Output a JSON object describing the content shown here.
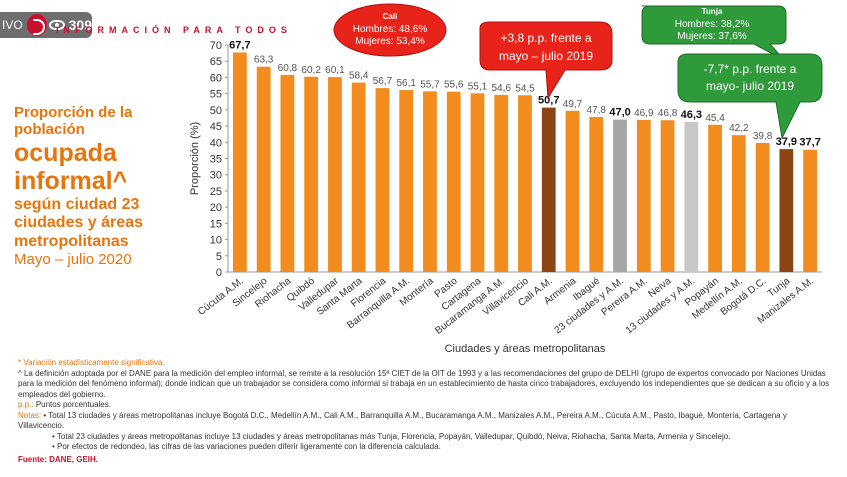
{
  "overlay": {
    "live_label": "IVO",
    "views": "309"
  },
  "header": {
    "tagline": "INFORMACIÓN PARA TODOS"
  },
  "left_title": {
    "line1": "Proporción de la población",
    "line2": "ocupada informal^",
    "line3": "según ciudad 23 ciudades y áreas metropolitanas",
    "line4": "Mayo – julio 2020"
  },
  "callouts": {
    "cali_box": {
      "title": "Cali",
      "line1": "Hombres: 48,6%",
      "line2": "Mujeres: 53,4%"
    },
    "cali_change": {
      "line1": "+3,8 p.p. frente a",
      "line2": "mayo – julio 2019"
    },
    "tunja_box": {
      "title": "Tunja",
      "line1": "Hombres: 38,2%",
      "line2": "Mujeres: 37,6%"
    },
    "tunja_change": {
      "line1": "-7,7* p.p. frente a",
      "line2": "mayo- julio 2019"
    }
  },
  "chart_data": {
    "type": "bar",
    "xlabel": "Ciudades y áreas metropolitanas",
    "ylabel": "Proporción (%)",
    "ylim": [
      0,
      70
    ],
    "yticks": [
      0,
      5,
      10,
      15,
      20,
      25,
      30,
      35,
      40,
      45,
      50,
      55,
      60,
      65,
      70
    ],
    "categories": [
      "Cúcuta A.M.",
      "Sincelejo",
      "Riohacha",
      "Quibdó",
      "Valledupar",
      "Santa Marta",
      "Florencia",
      "Barranquilla A.M.",
      "Montería",
      "Pasto",
      "Cartagena",
      "Bucaramanga A.M.",
      "Villavicencio",
      "Cali A.M.",
      "Armenia",
      "Ibagué",
      "23 ciudades y A.M.",
      "Pereira A.M.",
      "Neiva",
      "13 ciudades y A.M.",
      "Popayán",
      "Medellín A.M.",
      "Bogotá D.C.",
      "Tunja",
      "Manizales A.M."
    ],
    "values": [
      67.7,
      63.3,
      60.8,
      60.2,
      60.1,
      58.4,
      56.7,
      56.1,
      55.7,
      55.6,
      55.1,
      54.6,
      54.5,
      50.7,
      49.7,
      47.8,
      47.0,
      46.9,
      46.8,
      46.3,
      45.4,
      42.2,
      39.8,
      37.9,
      37.7
    ],
    "labels": [
      "67,7",
      "63,3",
      "60,8",
      "60,2",
      "60,1",
      "58,4",
      "56,7",
      "56,1",
      "55,7",
      "55,6",
      "55,1",
      "54,6",
      "54,5",
      "50,7",
      "49,7",
      "47,8",
      "47,0",
      "46,9",
      "46,8",
      "46,3",
      "45,4",
      "42,2",
      "39,8",
      "37,9",
      "37,7"
    ],
    "bold_labels": [
      0,
      13,
      16,
      19,
      23,
      24
    ],
    "bar_colors": [
      "#f28c1e",
      "#f28c1e",
      "#f28c1e",
      "#f28c1e",
      "#f28c1e",
      "#f28c1e",
      "#f28c1e",
      "#f28c1e",
      "#f28c1e",
      "#f28c1e",
      "#f28c1e",
      "#f28c1e",
      "#f28c1e",
      "#8b4513",
      "#f28c1e",
      "#f28c1e",
      "#a6a6a6",
      "#f28c1e",
      "#f28c1e",
      "#c8c8c8",
      "#f28c1e",
      "#f28c1e",
      "#f28c1e",
      "#8b4513",
      "#f28c1e"
    ]
  },
  "notes": {
    "n1": "* Variación estadísticamente significativa.",
    "n2": "^ La definición adoptada por el DANE para la medición del empleo informal, se remite a la resolución 15ª CIET de la OIT de 1993 y a las recomendaciones del grupo de DELHI (grupo de expertos convocado por Naciones Unidas para la medición del fenómeno informal); donde indican que un trabajador se considera como informal si trabaja en un establecimiento de hasta cinco trabajadores, excluyendo los independientes que se dedican a su oficio y a los empleados del gobierno.",
    "n3_label": "p.p.:",
    "n3": "Puntos porcentuales.",
    "n4_label": "Notas:",
    "n4": "• Total 13 ciudades y áreas metropolitanas incluye Bogotá D.C., Medellín A.M., Cali A.M., Barranquilla A.M., Bucaramanga A.M., Manizales A.M., Pereira A.M., Cúcuta A.M., Pasto, Ibagué, Montería, Cartagena y Villavicencio.",
    "n5": "• Total 23 ciudades y áreas metropolitanas incluye 13 ciudades y áreas metropolitanas más Tunja, Florencia, Popayán, Valledupar, Quibdó, Neiva, Riohacha, Santa Marta, Armenia y Sincelejo.",
    "n6": "• Por efectos de redondeo, las cifras de las variaciones pueden diferir ligeramente con la diferencia calculada.",
    "source": "Fuente: DANE, GEIH."
  }
}
